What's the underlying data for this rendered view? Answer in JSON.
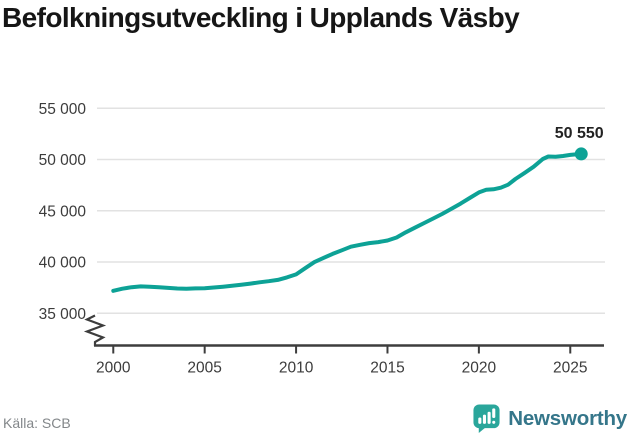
{
  "title": "Befolkningsutveckling i Upplands Väsby",
  "footer": {
    "source": "Källa: SCB",
    "brand": "Newsworthy"
  },
  "colors": {
    "line": "#0da296",
    "grid": "#e2e2e2",
    "axis": "#3d3d3d",
    "tick_label": "#3c3c3c",
    "title_color": "#161616",
    "source_text": "#83878a",
    "brand_icon": "#2aa69b",
    "brand_text": "#35768a"
  },
  "chart_data": {
    "type": "line",
    "title": "Befolkningsutveckling i Upplands Väsby",
    "xlabel": "",
    "ylabel": "",
    "grid": "horizontal",
    "legend": "none",
    "axis_break": true,
    "xlim": [
      1999,
      2026.9
    ],
    "ylim": [
      35000,
      55000
    ],
    "xticks": [
      2000,
      2005,
      2010,
      2015,
      2020,
      2025
    ],
    "xtick_labels": [
      "2000",
      "2005",
      "2010",
      "2015",
      "2020",
      "2025"
    ],
    "yticks": [
      35000,
      40000,
      45000,
      50000,
      55000
    ],
    "ytick_labels": [
      "35 000",
      "40 000",
      "45 000",
      "50 000",
      "55 000"
    ],
    "end_label": "50 550",
    "end_point": [
      2025.6,
      50550
    ],
    "annotations": [
      {
        "x": 2025.6,
        "y": 50550,
        "text": "50 550"
      }
    ],
    "source": "SCB",
    "series": [
      {
        "name": "Befolkning, Upplands Väsby",
        "color": "#0da296",
        "points": [
          [
            2000.0,
            37200
          ],
          [
            2000.5,
            37400
          ],
          [
            2001.0,
            37550
          ],
          [
            2001.5,
            37620
          ],
          [
            2002.0,
            37600
          ],
          [
            2002.5,
            37540
          ],
          [
            2003.0,
            37480
          ],
          [
            2003.5,
            37420
          ],
          [
            2004.0,
            37400
          ],
          [
            2004.5,
            37430
          ],
          [
            2005.0,
            37450
          ],
          [
            2005.5,
            37520
          ],
          [
            2006.0,
            37600
          ],
          [
            2006.5,
            37680
          ],
          [
            2007.0,
            37780
          ],
          [
            2007.5,
            37900
          ],
          [
            2008.0,
            38020
          ],
          [
            2008.5,
            38130
          ],
          [
            2009.0,
            38260
          ],
          [
            2009.5,
            38500
          ],
          [
            2010.0,
            38800
          ],
          [
            2010.5,
            39400
          ],
          [
            2011.0,
            40000
          ],
          [
            2011.5,
            40400
          ],
          [
            2012.0,
            40800
          ],
          [
            2012.5,
            41150
          ],
          [
            2013.0,
            41500
          ],
          [
            2013.5,
            41680
          ],
          [
            2014.0,
            41850
          ],
          [
            2014.5,
            41950
          ],
          [
            2015.0,
            42100
          ],
          [
            2015.5,
            42400
          ],
          [
            2016.0,
            42900
          ],
          [
            2016.5,
            43350
          ],
          [
            2017.0,
            43800
          ],
          [
            2017.5,
            44250
          ],
          [
            2018.0,
            44700
          ],
          [
            2018.5,
            45200
          ],
          [
            2019.0,
            45700
          ],
          [
            2019.5,
            46250
          ],
          [
            2020.0,
            46800
          ],
          [
            2020.4,
            47050
          ],
          [
            2020.8,
            47100
          ],
          [
            2021.2,
            47250
          ],
          [
            2021.6,
            47550
          ],
          [
            2022.0,
            48100
          ],
          [
            2022.5,
            48700
          ],
          [
            2023.0,
            49300
          ],
          [
            2023.5,
            50050
          ],
          [
            2023.8,
            50300
          ],
          [
            2024.2,
            50280
          ],
          [
            2024.6,
            50350
          ],
          [
            2025.0,
            50450
          ],
          [
            2025.6,
            50550
          ]
        ]
      }
    ]
  }
}
